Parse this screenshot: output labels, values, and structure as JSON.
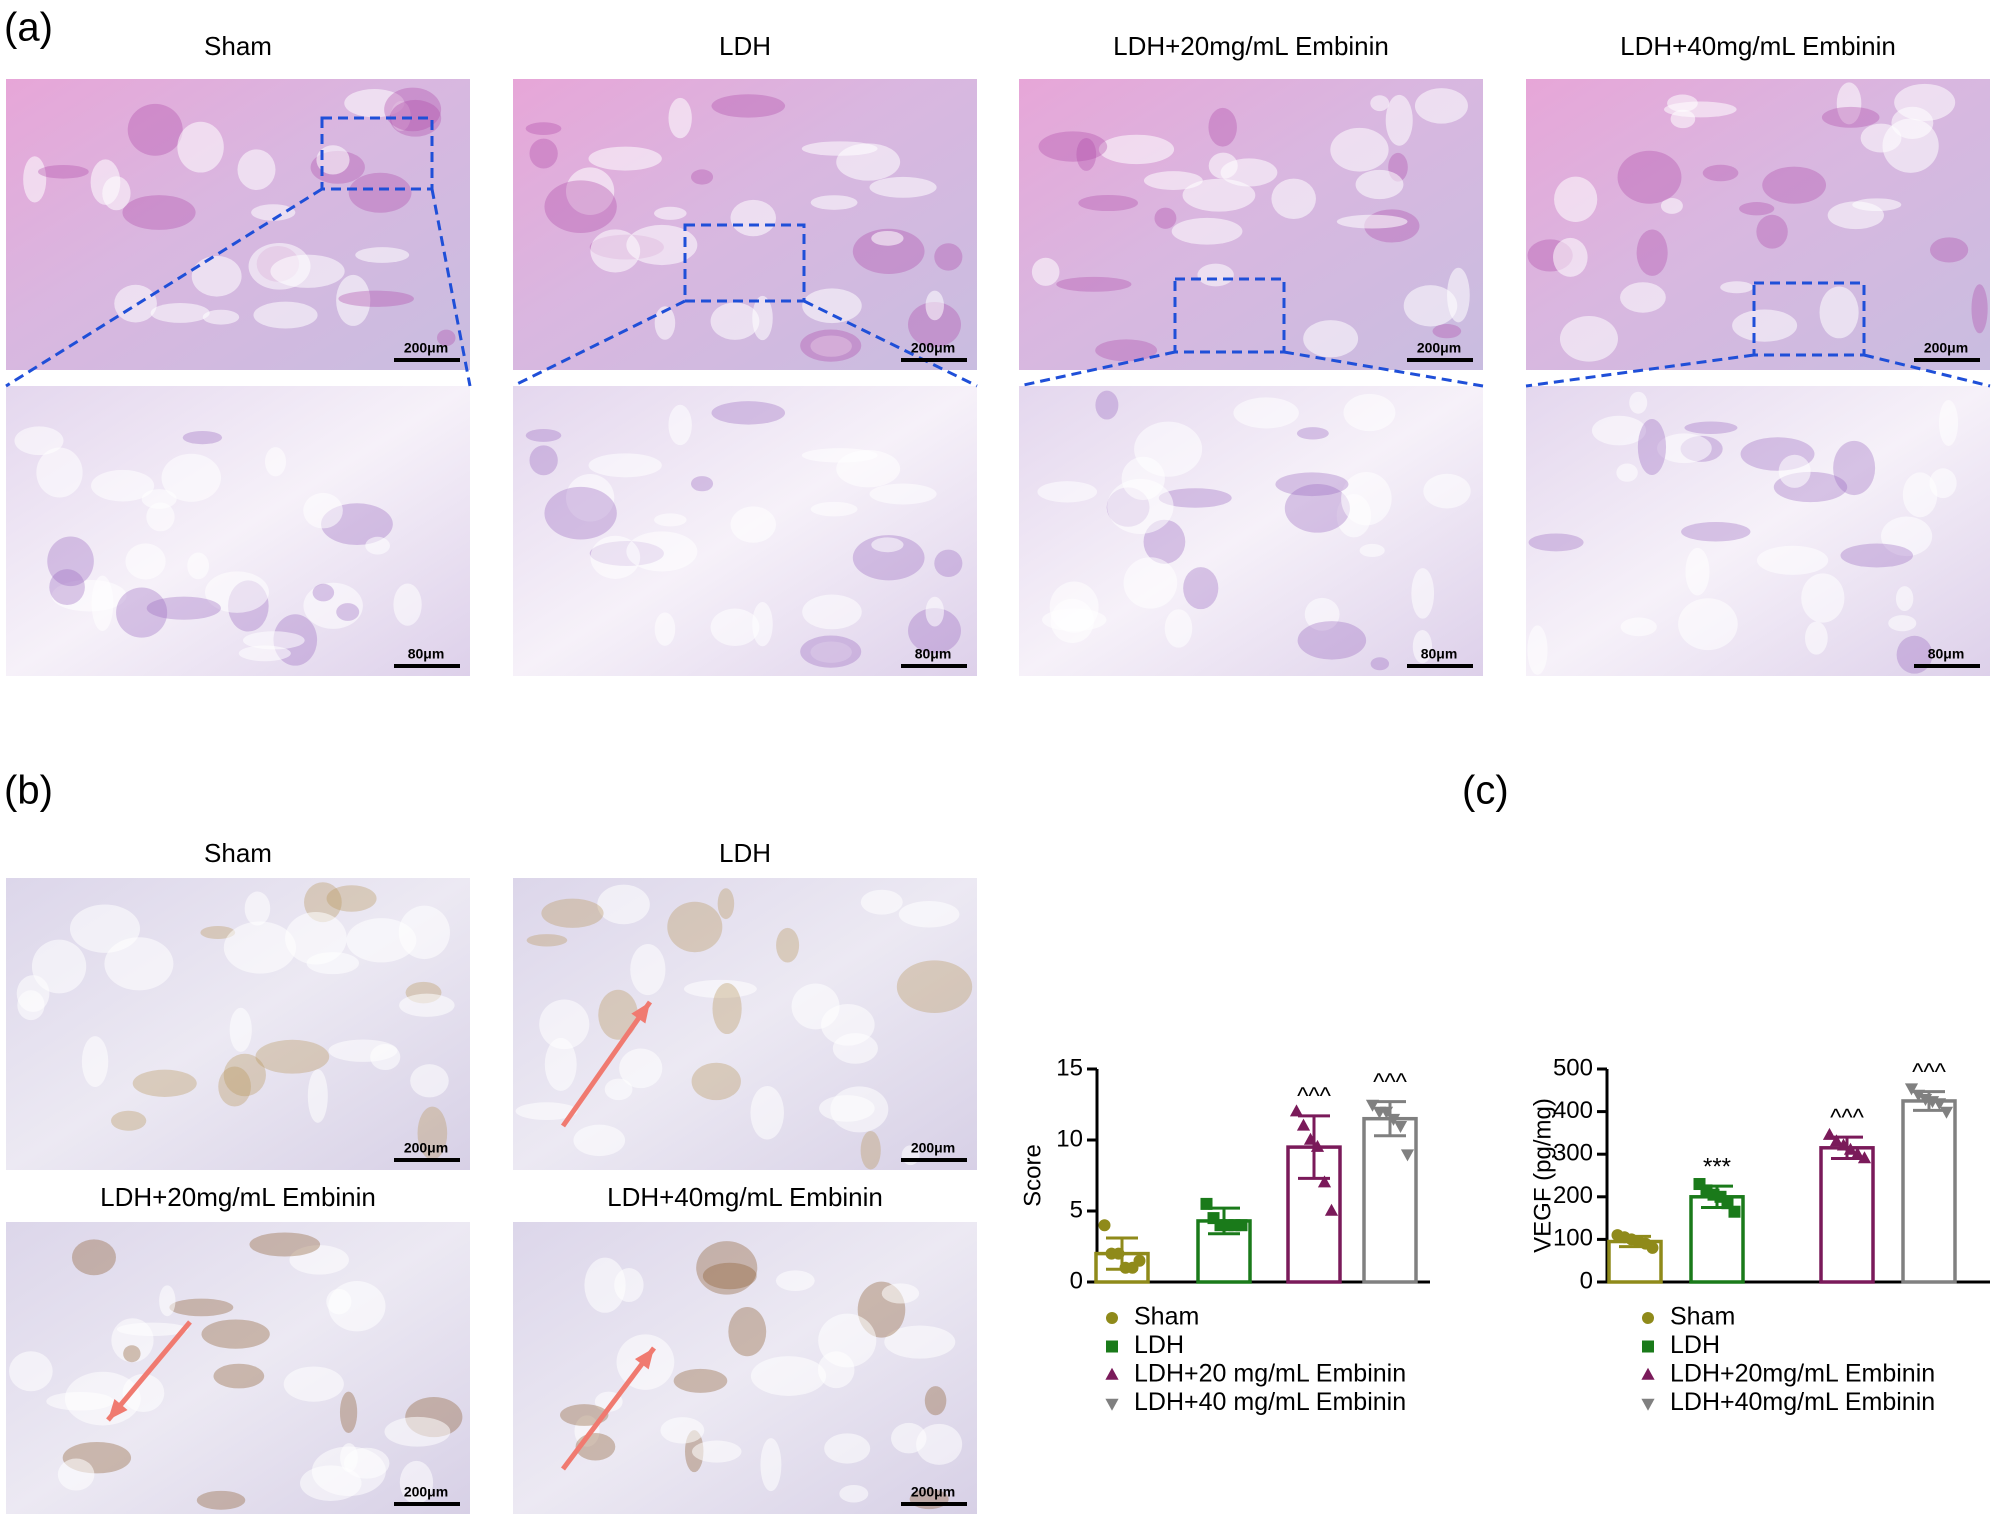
{
  "panel_labels": [
    "(a)",
    "(b)",
    "(c)"
  ],
  "panel_a": {
    "columns": [
      {
        "title": "Sham",
        "scale_top": "200μm",
        "scale_bottom": "80μm"
      },
      {
        "title": "LDH",
        "scale_top": "200μm",
        "scale_bottom": "80μm"
      },
      {
        "title": "LDH+20mg/mL Embinin",
        "scale_top": "200μm",
        "scale_bottom": "80μm"
      },
      {
        "title": "LDH+40mg/mL Embinin",
        "scale_top": "200μm",
        "scale_bottom": "80μm"
      }
    ]
  },
  "panel_b": {
    "images": [
      {
        "title": "Sham",
        "scale": "200μm"
      },
      {
        "title": "LDH",
        "scale": "200μm"
      },
      {
        "title": "LDH+20mg/mL Embinin",
        "scale": "200μm"
      },
      {
        "title": "LDH+40mg/mL Embinin",
        "scale": "200μm"
      }
    ]
  },
  "chart_data": [
    {
      "type": "bar",
      "ylabel": "Score",
      "ylim": [
        0,
        15
      ],
      "yticks": [
        0,
        5,
        10,
        15
      ],
      "series": [
        {
          "name": "Sham",
          "color": "#8f8a1a",
          "marker": "circle",
          "values": [
            2.0
          ],
          "errors": [
            1.1
          ],
          "points": [
            4,
            2,
            2,
            1,
            1,
            1.5
          ],
          "annotation": null
        },
        {
          "name": "LDH",
          "color": "#1a7a1a",
          "marker": "square",
          "values": [
            4.3
          ],
          "errors": [
            0.9
          ],
          "points": [
            5.5,
            4.5,
            4,
            4,
            4,
            4
          ],
          "annotation": null
        },
        {
          "name": "LDH+20 mg/mL Embinin",
          "color": "#7a1a5a",
          "marker": "triangle-up",
          "values": [
            9.5
          ],
          "errors": [
            2.2
          ],
          "points": [
            12,
            11,
            10,
            9.5,
            7,
            5
          ],
          "annotation": "^^^"
        },
        {
          "name": "LDH+40 mg/mL Embinin",
          "color": "#808080",
          "marker": "triangle-down",
          "values": [
            11.5
          ],
          "errors": [
            1.2
          ],
          "points": [
            12.5,
            12,
            12,
            11.5,
            11,
            9
          ],
          "annotation": "^^^"
        }
      ]
    },
    {
      "type": "bar",
      "ylabel": "VEGF (pg/mg)",
      "ylim": [
        0,
        500
      ],
      "yticks": [
        0,
        100,
        200,
        300,
        400,
        500
      ],
      "series": [
        {
          "name": "Sham",
          "color": "#8f8a1a",
          "marker": "circle",
          "values": [
            95
          ],
          "errors": [
            12
          ],
          "points": [
            110,
            105,
            100,
            95,
            90,
            80
          ],
          "annotation": null
        },
        {
          "name": "LDH",
          "color": "#1a7a1a",
          "marker": "square",
          "values": [
            200
          ],
          "errors": [
            25
          ],
          "points": [
            230,
            215,
            205,
            200,
            185,
            165
          ],
          "annotation": "***"
        },
        {
          "name": "LDH+20mg/mL Embinin",
          "color": "#7a1a5a",
          "marker": "triangle-up",
          "values": [
            315
          ],
          "errors": [
            25
          ],
          "points": [
            345,
            330,
            320,
            310,
            300,
            290
          ],
          "annotation": "^^^"
        },
        {
          "name": "LDH+40mg/mL Embinin",
          "color": "#808080",
          "marker": "triangle-down",
          "values": [
            425
          ],
          "errors": [
            22
          ],
          "points": [
            455,
            440,
            430,
            425,
            420,
            400
          ],
          "annotation": "^^^"
        }
      ]
    }
  ]
}
